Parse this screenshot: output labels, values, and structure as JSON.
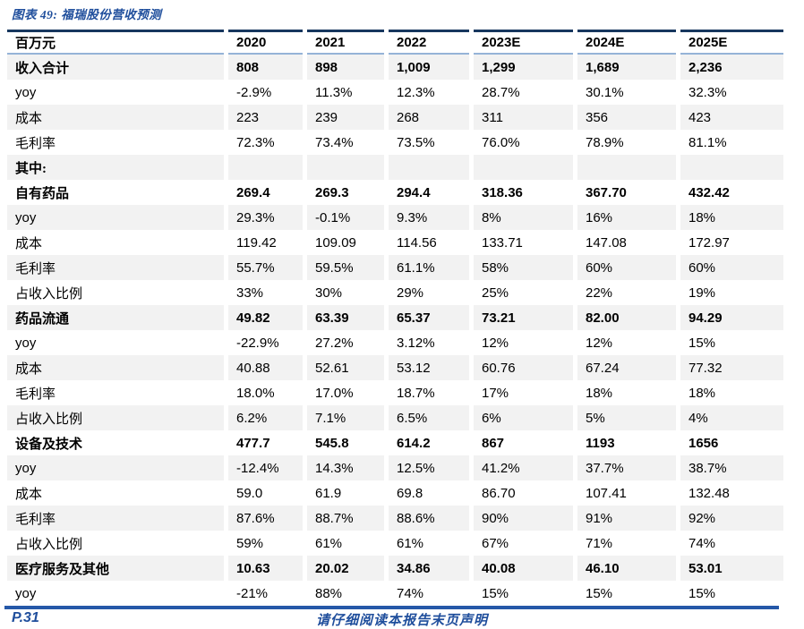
{
  "title": "图表 49: 福瑞股份营收预测",
  "table": {
    "unit_label": "百万元",
    "columns": [
      "2020",
      "2021",
      "2022",
      "2023E",
      "2024E",
      "2025E"
    ],
    "rows": [
      {
        "label": "收入合计",
        "bold": true,
        "values": [
          "808",
          "898",
          "1,009",
          "1,299",
          "1,689",
          "2,236"
        ]
      },
      {
        "label": "yoy",
        "bold": false,
        "values": [
          "-2.9%",
          "11.3%",
          "12.3%",
          "28.7%",
          "30.1%",
          "32.3%"
        ]
      },
      {
        "label": "成本",
        "bold": false,
        "values": [
          "223",
          "239",
          "268",
          "311",
          "356",
          "423"
        ]
      },
      {
        "label": "毛利率",
        "bold": false,
        "values": [
          "72.3%",
          "73.4%",
          "73.5%",
          "76.0%",
          "78.9%",
          "81.1%"
        ]
      },
      {
        "label": "其中:",
        "bold": true,
        "values": [
          "",
          "",
          "",
          "",
          "",
          ""
        ]
      },
      {
        "label": "自有药品",
        "bold": true,
        "values": [
          "269.4",
          "269.3",
          "294.4",
          "318.36",
          "367.70",
          "432.42"
        ]
      },
      {
        "label": "yoy",
        "bold": false,
        "values": [
          "29.3%",
          "-0.1%",
          "9.3%",
          "8%",
          "16%",
          "18%"
        ]
      },
      {
        "label": "成本",
        "bold": false,
        "values": [
          "119.42",
          "109.09",
          "114.56",
          "133.71",
          "147.08",
          "172.97"
        ]
      },
      {
        "label": "毛利率",
        "bold": false,
        "values": [
          "55.7%",
          "59.5%",
          "61.1%",
          "58%",
          "60%",
          "60%"
        ]
      },
      {
        "label": "占收入比例",
        "bold": false,
        "values": [
          "33%",
          "30%",
          "29%",
          "25%",
          "22%",
          "19%"
        ]
      },
      {
        "label": "药品流通",
        "bold": true,
        "values": [
          "49.82",
          "63.39",
          "65.37",
          "73.21",
          "82.00",
          "94.29"
        ]
      },
      {
        "label": "yoy",
        "bold": false,
        "values": [
          "-22.9%",
          "27.2%",
          "3.12%",
          "12%",
          "12%",
          "15%"
        ]
      },
      {
        "label": "成本",
        "bold": false,
        "values": [
          "40.88",
          "52.61",
          "53.12",
          "60.76",
          "67.24",
          "77.32"
        ]
      },
      {
        "label": "毛利率",
        "bold": false,
        "values": [
          "18.0%",
          "17.0%",
          "18.7%",
          "17%",
          "18%",
          "18%"
        ]
      },
      {
        "label": "占收入比例",
        "bold": false,
        "values": [
          "6.2%",
          "7.1%",
          "6.5%",
          "6%",
          "5%",
          "4%"
        ]
      },
      {
        "label": "设备及技术",
        "bold": true,
        "values": [
          "477.7",
          "545.8",
          "614.2",
          "867",
          "1193",
          "1656"
        ]
      },
      {
        "label": "yoy",
        "bold": false,
        "values": [
          "-12.4%",
          "14.3%",
          "12.5%",
          "41.2%",
          "37.7%",
          "38.7%"
        ]
      },
      {
        "label": "成本",
        "bold": false,
        "values": [
          "59.0",
          "61.9",
          "69.8",
          "86.70",
          "107.41",
          "132.48"
        ]
      },
      {
        "label": "毛利率",
        "bold": false,
        "values": [
          "87.6%",
          "88.7%",
          "88.6%",
          "90%",
          "91%",
          "92%"
        ]
      },
      {
        "label": "占收入比例",
        "bold": false,
        "values": [
          "59%",
          "61%",
          "61%",
          "67%",
          "71%",
          "74%"
        ]
      },
      {
        "label": "医疗服务及其他",
        "bold": true,
        "values": [
          "10.63",
          "20.02",
          "34.86",
          "40.08",
          "46.10",
          "53.01"
        ]
      },
      {
        "label": "yoy",
        "bold": false,
        "values": [
          "-21%",
          "88%",
          "74%",
          "15%",
          "15%",
          "15%"
        ]
      }
    ]
  },
  "footer": {
    "page_number": "P.31",
    "disclaimer": "请仔细阅读本报告末页声明"
  },
  "colors": {
    "title_blue": "#1F4E9C",
    "header_top_border": "#17375E",
    "header_underline": "#95B3D7",
    "row_shade": "#F2F2F2",
    "footer_line": "#2558A8",
    "text": "#000000"
  }
}
